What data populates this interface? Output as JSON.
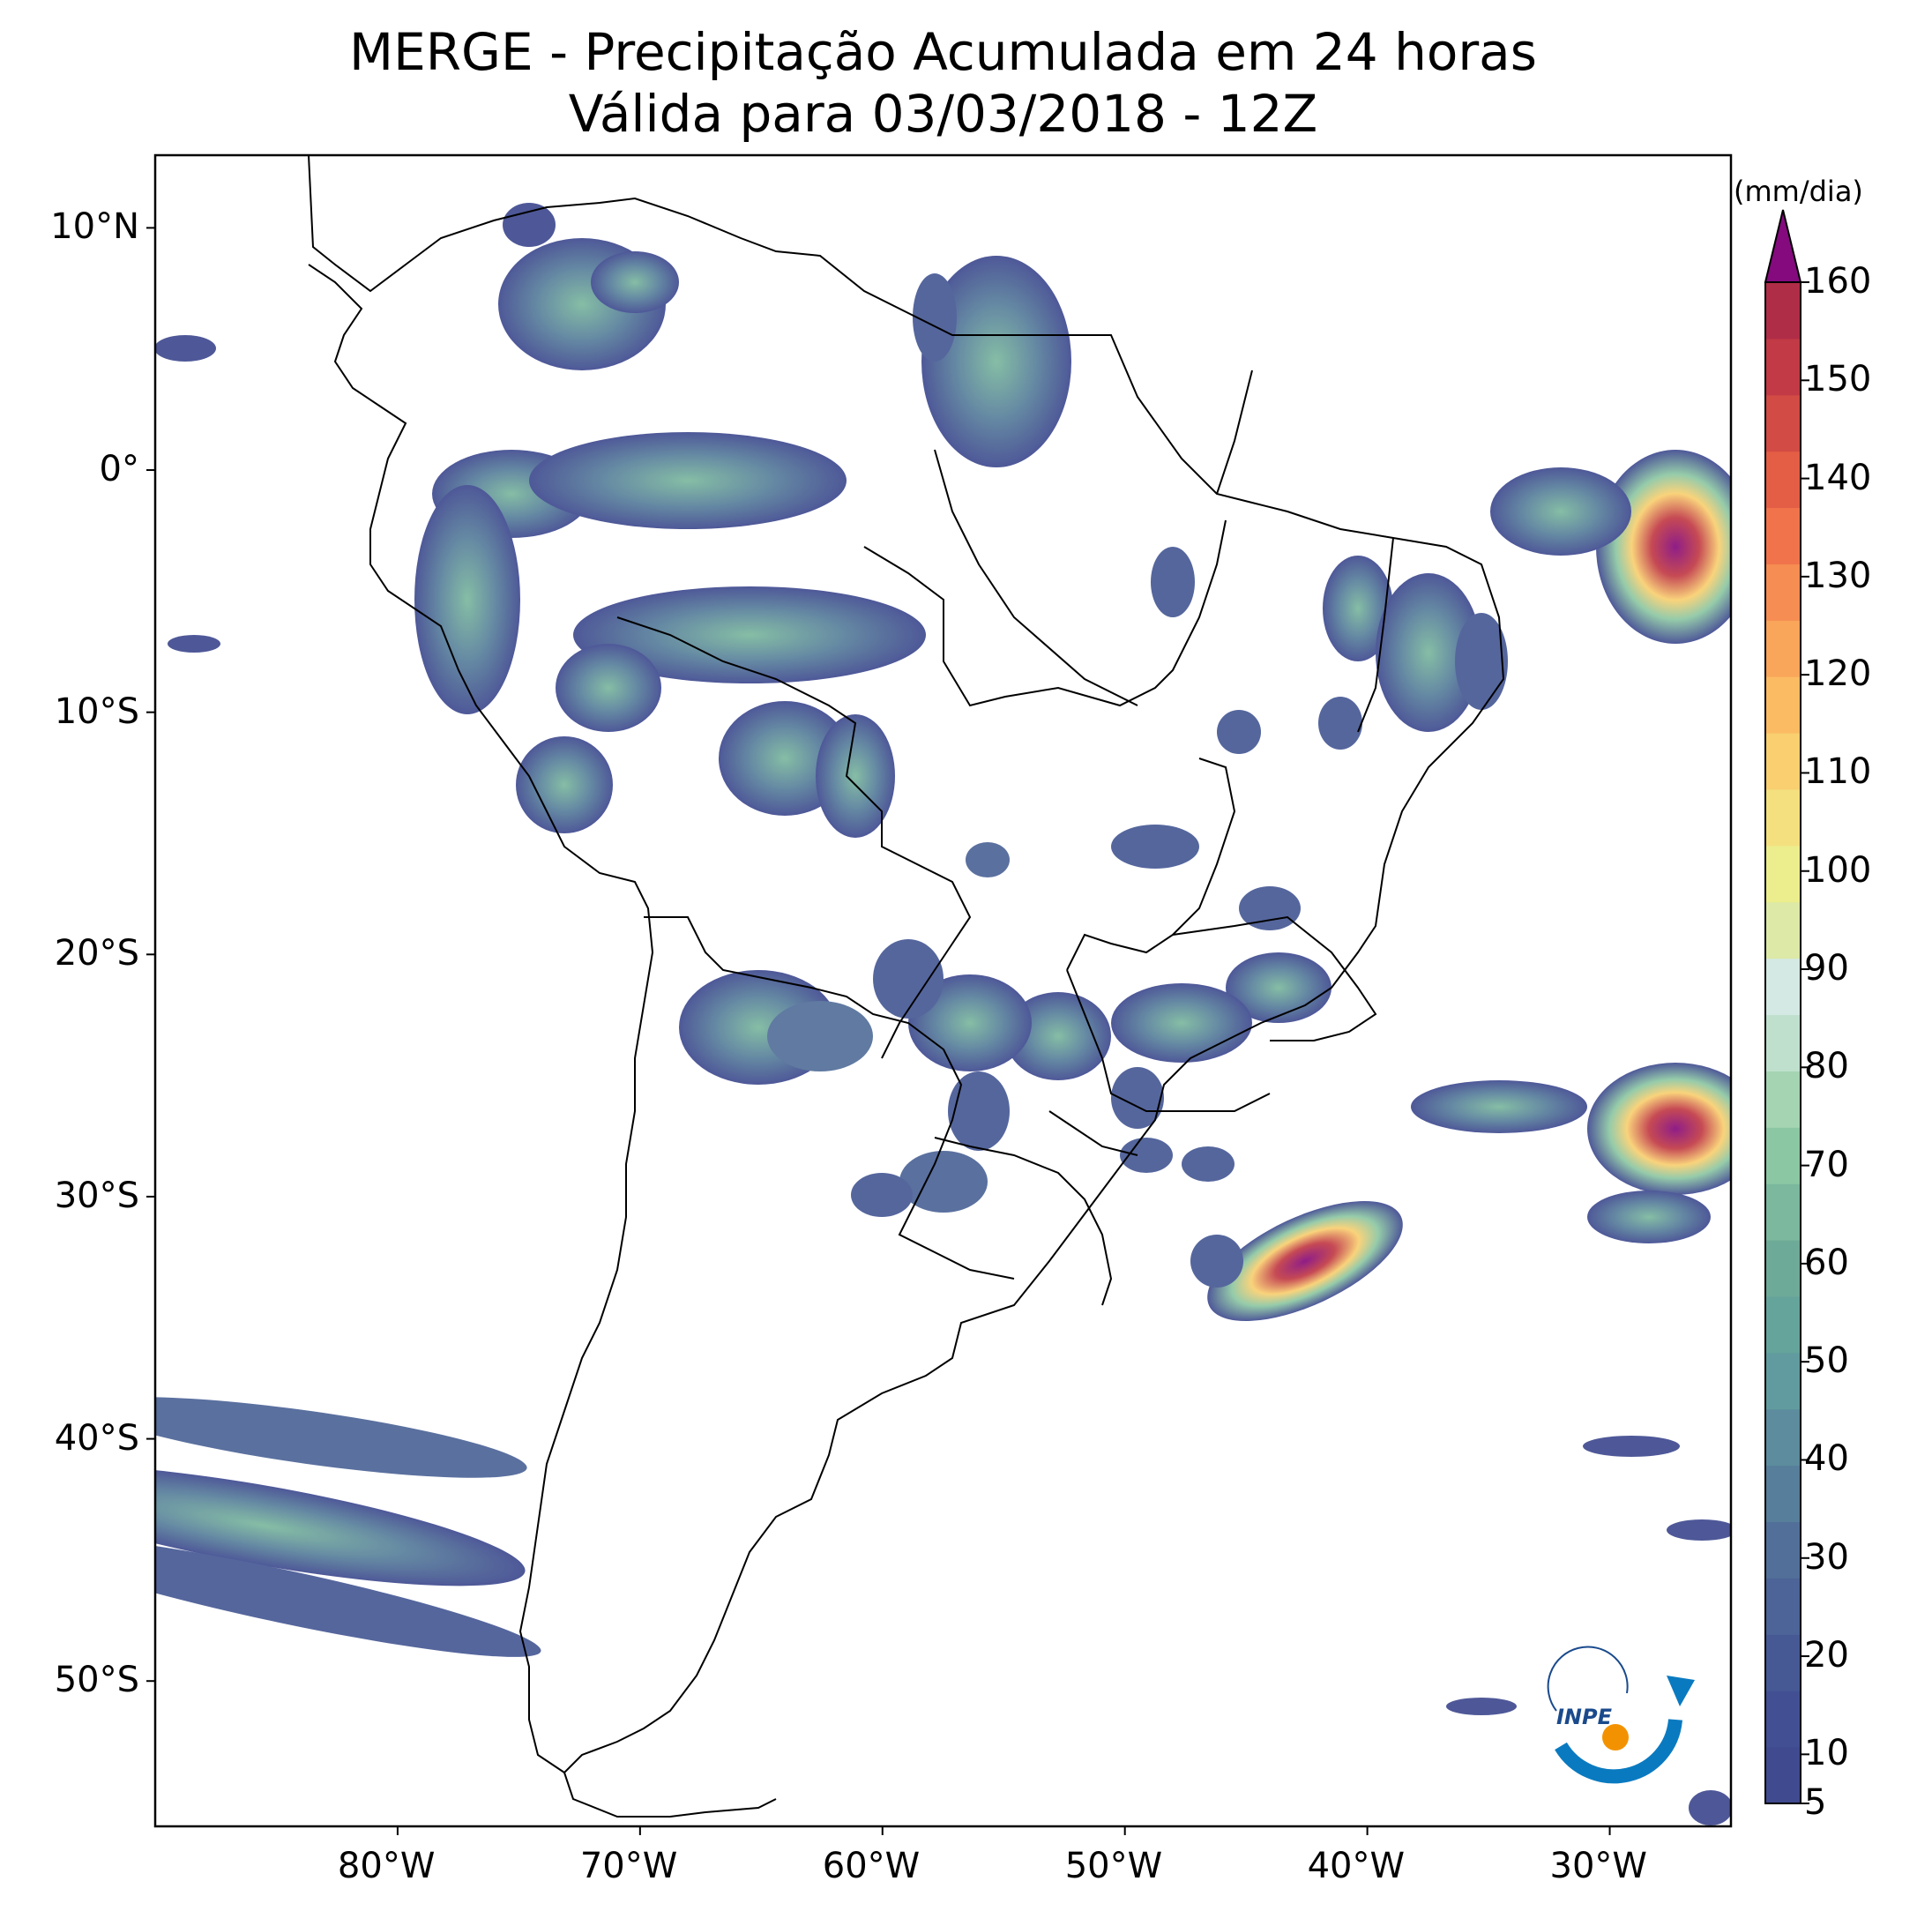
{
  "title": {
    "line1": "MERGE - Precipitação Acumulada em 24 horas",
    "line2": "Válida para 03/03/2018 - 12Z"
  },
  "axes": {
    "lat_labels": [
      "10°N",
      "0°",
      "10°S",
      "20°S",
      "30°S",
      "40°S",
      "50°S"
    ],
    "lon_labels": [
      "80°W",
      "70°W",
      "60°W",
      "50°W",
      "40°W",
      "30°W"
    ],
    "lon_range": [
      -90,
      -25
    ],
    "lat_range": [
      -56,
      13
    ]
  },
  "colorbar": {
    "unit": "(mm/dia)",
    "tick_labels": [
      "5",
      "10",
      "20",
      "30",
      "40",
      "50",
      "60",
      "70",
      "80",
      "90",
      "100",
      "110",
      "120",
      "130",
      "140",
      "150",
      "160"
    ],
    "colors": [
      "#3f4a8f",
      "#424f92",
      "#465995",
      "#4c6497",
      "#526f99",
      "#577e9b",
      "#5c8c9d",
      "#619b9f",
      "#65a49b",
      "#6eaa98",
      "#7bb89d",
      "#8cc7a3",
      "#a5d4b3",
      "#bfe0cd",
      "#d4e9e3",
      "#dde9a6",
      "#ecee8d",
      "#f4e07f",
      "#f9cf70",
      "#fbbb63",
      "#f9a55a",
      "#f68d52",
      "#f0734b",
      "#e35e45",
      "#d24b44",
      "#c13a45",
      "#b02d47"
    ],
    "extend_color": "#850a7e"
  },
  "logo": {
    "text": "INPE"
  }
}
